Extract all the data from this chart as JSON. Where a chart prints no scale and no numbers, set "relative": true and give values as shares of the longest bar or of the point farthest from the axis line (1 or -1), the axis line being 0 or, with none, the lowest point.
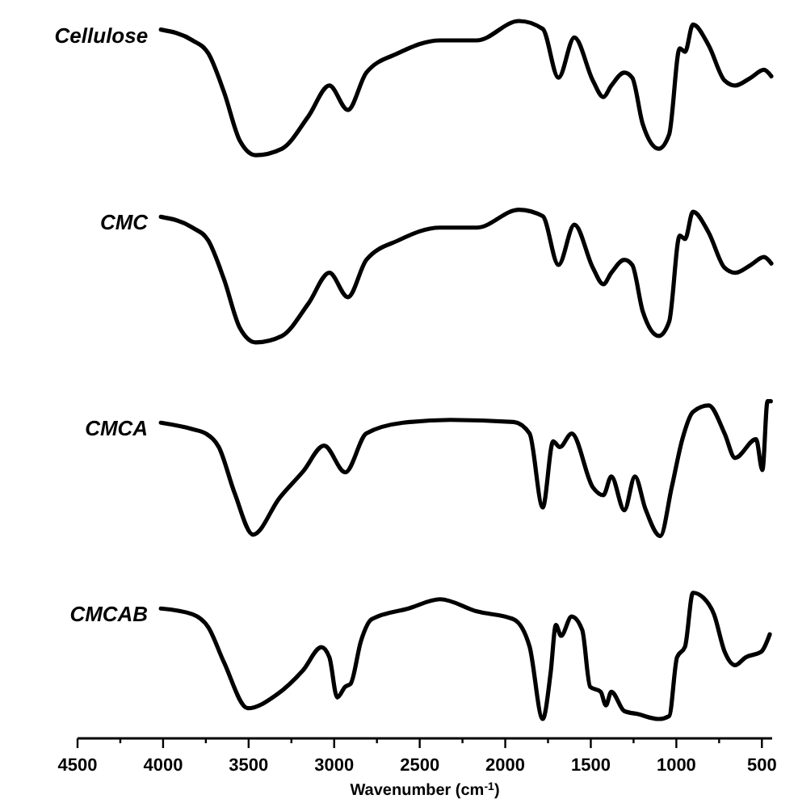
{
  "chart_data": {
    "type": "line",
    "relative": true,
    "xlabel": "Wavenumber (cm$^{-1}$)",
    "xlim": [
      4500,
      440
    ],
    "xticks": [
      4500,
      {
        "value": 4250,
        "label": null
      },
      4000,
      {
        "value": 3750,
        "label": null
      },
      3500,
      {
        "value": 3250,
        "label": null
      },
      3000,
      {
        "value": 2750,
        "label": null
      },
      2500,
      {
        "value": 2250,
        "label": null
      },
      2000,
      {
        "value": 1750,
        "label": null
      },
      1500,
      {
        "value": 1250,
        "label": null
      },
      1000,
      {
        "value": 750,
        "label": null
      },
      500
    ],
    "line_style": "solid",
    "series": [
      {
        "name": "Cellulose",
        "color": "#000000",
        "x": [
          4013,
          3828,
          3736,
          3644,
          3551,
          3459,
          3305,
          3151,
          3028,
          2920,
          2812,
          2627,
          2381,
          2166,
          1920,
          1781,
          1689,
          1596,
          1488,
          1427,
          1380,
          1304,
          1258,
          1196,
          1103,
          1042,
          980,
          949,
          903,
          811,
          718,
          657,
          565,
          488,
          445
        ],
        "values": [
          0.988,
          0.973,
          0.955,
          0.901,
          0.833,
          0.813,
          0.822,
          0.867,
          0.91,
          0.876,
          0.928,
          0.955,
          0.973,
          0.973,
          1,
          0.989,
          0.921,
          0.977,
          0.917,
          0.894,
          0.91,
          0.928,
          0.921,
          0.856,
          0.822,
          0.842,
          0.962,
          0.957,
          0.995,
          0.966,
          0.917,
          0.91,
          0.921,
          0.932,
          0.923
        ]
      },
      {
        "name": "CMC",
        "color": "#000000",
        "x": [
          4013,
          3828,
          3736,
          3644,
          3551,
          3459,
          3305,
          3151,
          3028,
          2920,
          2812,
          2627,
          2381,
          2166,
          1920,
          1781,
          1689,
          1596,
          1488,
          1427,
          1380,
          1304,
          1258,
          1196,
          1103,
          1042,
          980,
          949,
          903,
          811,
          718,
          657,
          565,
          488,
          445
        ],
        "values": [
          0.727,
          0.712,
          0.694,
          0.64,
          0.572,
          0.552,
          0.561,
          0.606,
          0.649,
          0.615,
          0.667,
          0.694,
          0.712,
          0.712,
          0.737,
          0.728,
          0.66,
          0.716,
          0.656,
          0.633,
          0.649,
          0.667,
          0.66,
          0.595,
          0.561,
          0.581,
          0.701,
          0.696,
          0.734,
          0.705,
          0.656,
          0.649,
          0.66,
          0.671,
          0.662
        ]
      },
      {
        "name": "CMCA",
        "color": "#000000",
        "x": [
          4013,
          3828,
          3751,
          3674,
          3582,
          3474,
          3320,
          3182,
          3059,
          2935,
          2812,
          2597,
          2320,
          1951,
          1858,
          1781,
          1720,
          1681,
          1612,
          1488,
          1427,
          1380,
          1304,
          1242,
          1181,
          1094,
          1027,
          965,
          903,
          811,
          718,
          657,
          534,
          497,
          467,
          448
        ],
        "values": [
          0.44,
          0.431,
          0.425,
          0.406,
          0.342,
          0.284,
          0.335,
          0.372,
          0.408,
          0.371,
          0.425,
          0.44,
          0.444,
          0.441,
          0.425,
          0.322,
          0.414,
          0.406,
          0.425,
          0.35,
          0.339,
          0.365,
          0.318,
          0.365,
          0.32,
          0.282,
          0.35,
          0.417,
          0.455,
          0.464,
          0.425,
          0.391,
          0.417,
          0.374,
          0.47,
          0.47
        ]
      },
      {
        "name": "CMCAB",
        "color": "#000000",
        "x": [
          4013,
          3828,
          3736,
          3644,
          3505,
          3336,
          3182,
          3074,
          3028,
          2982,
          2935,
          2904,
          2843,
          2781,
          2566,
          2381,
          2166,
          1951,
          1858,
          1781,
          1735,
          1704,
          1674,
          1612,
          1550,
          1504,
          1442,
          1412,
          1380,
          1304,
          1227,
          1103,
          1042,
          996,
          949,
          903,
          842,
          780,
          718,
          657,
          595,
          503,
          454
        ],
        "values": [
          0.181,
          0.173,
          0.155,
          0.106,
          0.042,
          0.061,
          0.095,
          0.127,
          0.113,
          0.057,
          0.072,
          0.076,
          0.136,
          0.166,
          0.181,
          0.194,
          0.177,
          0.166,
          0.128,
          0.027,
          0.091,
          0.158,
          0.143,
          0.17,
          0.151,
          0.072,
          0.065,
          0.046,
          0.065,
          0.038,
          0.034,
          0.027,
          0.031,
          0.113,
          0.128,
          0.203,
          0.196,
          0.173,
          0.121,
          0.102,
          0.113,
          0.121,
          0.145
        ]
      }
    ]
  }
}
